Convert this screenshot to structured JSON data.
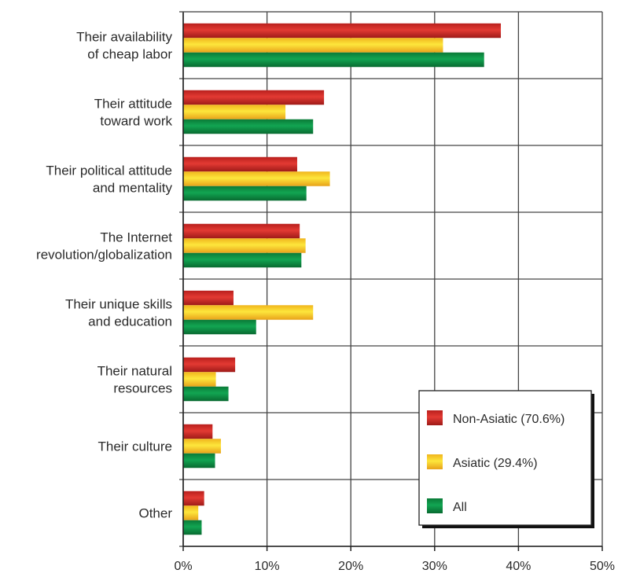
{
  "chart_data": {
    "type": "bar",
    "orientation": "horizontal",
    "title": "",
    "xlabel": "",
    "ylabel": "",
    "xlim": [
      0,
      50
    ],
    "x_ticks": [
      "0%",
      "10%",
      "20%",
      "30%",
      "40%",
      "50%"
    ],
    "grid": true,
    "legend_position": "bottom-right",
    "categories": [
      [
        "Their availability",
        "of cheap labor"
      ],
      [
        "Their attitude",
        "toward work"
      ],
      [
        "Their political attitude",
        "and mentality"
      ],
      [
        "The Internet",
        "revolution/globalization"
      ],
      [
        "Their unique skills",
        "and education"
      ],
      [
        "Their natural",
        "resources"
      ],
      [
        "Their culture"
      ],
      [
        "Other"
      ]
    ],
    "series": [
      {
        "name": "Non-Asiatic (70.6%)",
        "color": "#d62b27",
        "values": [
          37.9,
          16.8,
          13.6,
          13.9,
          6.0,
          6.2,
          3.5,
          2.5
        ]
      },
      {
        "name": "Asiatic (29.4%)",
        "color": "#f7cf2a",
        "values": [
          31.0,
          12.2,
          17.5,
          14.6,
          15.5,
          3.9,
          4.5,
          1.8
        ]
      },
      {
        "name": "All",
        "color": "#0e9447",
        "values": [
          35.9,
          15.5,
          14.7,
          14.1,
          8.7,
          5.4,
          3.8,
          2.2
        ]
      }
    ]
  }
}
